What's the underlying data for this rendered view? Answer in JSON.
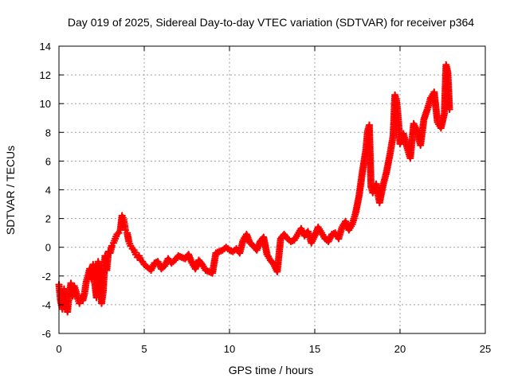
{
  "chart_data": {
    "type": "scatter",
    "title": "Day 019 of 2025, Sidereal Day-to-day VTEC variation (SDTVAR) for receiver p364",
    "xlabel": "GPS time / hours",
    "ylabel": "SDTVAR / TECUs",
    "xlim": [
      0,
      25
    ],
    "ylim": [
      -6,
      14
    ],
    "xticks": [
      0,
      5,
      10,
      15,
      20,
      25
    ],
    "yticks": [
      -6,
      -4,
      -2,
      0,
      2,
      4,
      6,
      8,
      10,
      12,
      14
    ],
    "xtick_labels": [
      "0",
      "5",
      "10",
      "15",
      "20",
      "25"
    ],
    "ytick_labels": [
      "-6",
      "-4",
      "-2",
      "0",
      "2",
      "4",
      "6",
      "8",
      "10",
      "12",
      "14"
    ],
    "grid": true,
    "marker": "plus",
    "color": "#ff0000",
    "series": [
      {
        "name": "SDTVAR",
        "points": [
          [
            0.0,
            -2.6
          ],
          [
            0.1,
            -3.8
          ],
          [
            0.2,
            -4.3
          ],
          [
            0.3,
            -2.9
          ],
          [
            0.4,
            -3.6
          ],
          [
            0.5,
            -4.5
          ],
          [
            0.6,
            -3.2
          ],
          [
            0.7,
            -2.5
          ],
          [
            0.8,
            -3.4
          ],
          [
            0.9,
            -2.7
          ],
          [
            1.0,
            -3.1
          ],
          [
            1.1,
            -3.6
          ],
          [
            1.2,
            -3.9
          ],
          [
            1.3,
            -3.5
          ],
          [
            1.4,
            -3.7
          ],
          [
            1.5,
            -3.2
          ],
          [
            1.6,
            -2.4
          ],
          [
            1.7,
            -2.0
          ],
          [
            1.8,
            -1.5
          ],
          [
            1.9,
            -2.2
          ],
          [
            2.0,
            -1.2
          ],
          [
            2.1,
            -2.5
          ],
          [
            2.2,
            -3.5
          ],
          [
            2.3,
            -1.0
          ],
          [
            2.4,
            -1.8
          ],
          [
            2.5,
            -3.9
          ],
          [
            2.6,
            -3.0
          ],
          [
            2.7,
            -0.6
          ],
          [
            2.8,
            -1.6
          ],
          [
            2.9,
            -0.3
          ],
          [
            3.0,
            -0.4
          ],
          [
            3.1,
            0.1
          ],
          [
            3.2,
            0.3
          ],
          [
            3.3,
            0.6
          ],
          [
            3.4,
            0.9
          ],
          [
            3.5,
            1.0
          ],
          [
            3.6,
            1.2
          ],
          [
            3.7,
            2.2
          ],
          [
            3.8,
            1.9
          ],
          [
            3.9,
            1.2
          ],
          [
            4.0,
            1.0
          ],
          [
            4.1,
            0.4
          ],
          [
            4.2,
            0.1
          ],
          [
            4.3,
            -0.1
          ],
          [
            4.4,
            -0.2
          ],
          [
            4.5,
            -0.5
          ],
          [
            4.6,
            -0.7
          ],
          [
            4.7,
            -0.6
          ],
          [
            4.8,
            -0.9
          ],
          [
            4.9,
            -1.0
          ],
          [
            5.0,
            -1.2
          ],
          [
            5.2,
            -1.4
          ],
          [
            5.4,
            -1.6
          ],
          [
            5.6,
            -1.1
          ],
          [
            5.8,
            -1.0
          ],
          [
            6.0,
            -1.5
          ],
          [
            6.2,
            -1.3
          ],
          [
            6.4,
            -0.8
          ],
          [
            6.6,
            -1.1
          ],
          [
            6.8,
            -0.9
          ],
          [
            7.0,
            -0.6
          ],
          [
            7.2,
            -0.7
          ],
          [
            7.4,
            -0.8
          ],
          [
            7.6,
            -0.5
          ],
          [
            7.8,
            -1.1
          ],
          [
            8.0,
            -1.5
          ],
          [
            8.2,
            -0.9
          ],
          [
            8.4,
            -1.2
          ],
          [
            8.6,
            -1.6
          ],
          [
            8.8,
            -1.7
          ],
          [
            9.0,
            -1.8
          ],
          [
            9.2,
            -0.4
          ],
          [
            9.4,
            -0.3
          ],
          [
            9.6,
            -0.2
          ],
          [
            9.8,
            0.0
          ],
          [
            10.0,
            -0.2
          ],
          [
            10.2,
            -0.3
          ],
          [
            10.4,
            -0.1
          ],
          [
            10.6,
            -0.4
          ],
          [
            10.8,
            0.5
          ],
          [
            11.0,
            0.9
          ],
          [
            11.2,
            0.3
          ],
          [
            11.4,
            0.1
          ],
          [
            11.6,
            -0.2
          ],
          [
            11.8,
            0.4
          ],
          [
            12.0,
            0.7
          ],
          [
            12.2,
            -0.5
          ],
          [
            12.4,
            -0.9
          ],
          [
            12.6,
            -1.2
          ],
          [
            12.8,
            -1.7
          ],
          [
            13.0,
            0.6
          ],
          [
            13.2,
            0.9
          ],
          [
            13.4,
            0.6
          ],
          [
            13.6,
            0.4
          ],
          [
            13.8,
            0.5
          ],
          [
            14.0,
            0.9
          ],
          [
            14.2,
            1.3
          ],
          [
            14.4,
            0.8
          ],
          [
            14.6,
            1.1
          ],
          [
            14.8,
            0.3
          ],
          [
            15.0,
            0.8
          ],
          [
            15.2,
            1.4
          ],
          [
            15.4,
            1.0
          ],
          [
            15.6,
            0.6
          ],
          [
            15.8,
            0.4
          ],
          [
            16.0,
            0.9
          ],
          [
            16.2,
            1.0
          ],
          [
            16.4,
            0.6
          ],
          [
            16.6,
            1.4
          ],
          [
            16.8,
            1.8
          ],
          [
            17.0,
            1.2
          ],
          [
            17.2,
            1.6
          ],
          [
            17.4,
            2.4
          ],
          [
            17.6,
            3.6
          ],
          [
            17.8,
            5.3
          ],
          [
            18.0,
            6.8
          ],
          [
            18.1,
            8.1
          ],
          [
            18.2,
            8.5
          ],
          [
            18.3,
            4.2
          ],
          [
            18.4,
            3.8
          ],
          [
            18.6,
            4.4
          ],
          [
            18.8,
            3.1
          ],
          [
            19.0,
            4.3
          ],
          [
            19.2,
            5.2
          ],
          [
            19.4,
            6.4
          ],
          [
            19.6,
            7.8
          ],
          [
            19.7,
            10.6
          ],
          [
            19.8,
            10.2
          ],
          [
            19.9,
            8.9
          ],
          [
            20.0,
            7.2
          ],
          [
            20.2,
            7.9
          ],
          [
            20.4,
            7.0
          ],
          [
            20.6,
            6.2
          ],
          [
            20.8,
            8.6
          ],
          [
            21.0,
            8.1
          ],
          [
            21.2,
            7.1
          ],
          [
            21.4,
            8.9
          ],
          [
            21.6,
            9.6
          ],
          [
            21.8,
            10.4
          ],
          [
            22.0,
            10.8
          ],
          [
            22.2,
            8.7
          ],
          [
            22.4,
            8.3
          ],
          [
            22.6,
            9.3
          ],
          [
            22.7,
            12.7
          ],
          [
            22.8,
            12.2
          ],
          [
            22.9,
            9.6
          ]
        ]
      }
    ]
  }
}
